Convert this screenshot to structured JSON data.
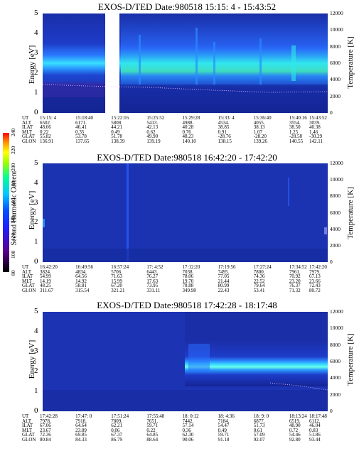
{
  "chart_data": [
    {
      "type": "heatmap",
      "title": "EXOS-D/TED   Date:980518   15:15: 4 - 15:43:52",
      "ylabel": "Energy [eV]",
      "y2label": "Temperature [K]",
      "ylim": [
        0,
        5
      ],
      "y2lim": [
        0,
        12000
      ],
      "yticks": [
        "5",
        "4",
        "3",
        "2",
        "1",
        "0"
      ],
      "y2ticks": [
        "12000",
        "10000",
        "8000",
        "6000",
        "4000",
        "2000",
        "0"
      ],
      "row_labels": [
        "UT",
        "ALT",
        "ILAT",
        "MLT",
        "GLAT",
        "GLON"
      ],
      "columns": [
        [
          "15:15: 4",
          "6502.",
          "48.66",
          "0.22",
          "55.82",
          "136.91"
        ],
        [
          "15:18:40",
          "6171.",
          "46.41",
          "0.35",
          "53.78",
          "137.65"
        ],
        [
          "15:22:16",
          "5808.",
          "44.21",
          "0.49",
          "51.78",
          "138.39"
        ],
        [
          "15:25:52",
          "5413.",
          "42.13",
          "0.62",
          "49.90",
          "139.19"
        ],
        [
          "15:29:28",
          "4988.",
          "40.28",
          "0.76",
          "48.23",
          "140.10"
        ],
        [
          "15:33: 4",
          "4534.",
          "38.85",
          "0.91",
          "-28.76",
          "138.15"
        ],
        [
          "15:36:40",
          "4055.",
          "38.13",
          "1.07",
          "-28.20",
          "139.26"
        ],
        [
          "15:40:16",
          "3554.",
          "38.50",
          "1.25",
          "-28.58",
          "140.55"
        ],
        [
          "15:43:52",
          "3039.",
          "40.38",
          "1.46",
          "-30.29",
          "142.11"
        ]
      ]
    },
    {
      "type": "heatmap",
      "title": "EXOS-D/TED   Date:980518   16:42:20 - 17:42:20",
      "ylabel": "Energy [eV]",
      "y2label": "Temperature [K]",
      "ylim": [
        0,
        5
      ],
      "y2lim": [
        0,
        12000
      ],
      "yticks": [
        "5",
        "4",
        "3",
        "2",
        "1",
        "0"
      ],
      "y2ticks": [
        "12000",
        "10000",
        "8000",
        "6000",
        "4000",
        "2000",
        "0"
      ],
      "row_labels": [
        "UT",
        "ALT",
        "ILAT",
        "MLT",
        "GLAT",
        "GLON"
      ],
      "columns": [
        [
          "16:42:20",
          "3824.",
          "54.99",
          "14.19",
          "48.25",
          "311.67"
        ],
        [
          "16:49:56",
          "4834.",
          "64.56",
          "14.92",
          "58.81",
          "315.54"
        ],
        [
          "16:57:24",
          "5706.",
          "71.63",
          "15.99",
          "67.20",
          "321.21"
        ],
        [
          "17: 4:52",
          "6443.",
          "76.27",
          "17.63",
          "73.95",
          "331.11"
        ],
        [
          "17:12:20",
          "7038.",
          "78.06",
          "19.70",
          "78.88",
          "349.98"
        ],
        [
          "17:19:56",
          "7495.",
          "77.05",
          "21.44",
          "80.99",
          "22.43"
        ],
        [
          "17:27:24",
          "7800.",
          "74.36",
          "22.52",
          "79.64",
          "53.41"
        ],
        [
          "17:34:52",
          "7961.",
          "70.92",
          "23.20",
          "76.37",
          "71.32"
        ],
        [
          "17:42:20",
          "7979.",
          "67.13",
          "23.66",
          "72.43",
          "80.72"
        ]
      ]
    },
    {
      "type": "heatmap",
      "title": "EXOS-D/TED   Date:980518   17:42:28 - 18:17:48",
      "ylabel": "Energy [eV]",
      "y2label": "Temperature [K]",
      "ylim": [
        0,
        5
      ],
      "y2lim": [
        0,
        12000
      ],
      "yticks": [
        "5",
        "4",
        "3",
        "2",
        "1",
        "0"
      ],
      "y2ticks": [
        "12000",
        "10000",
        "8000",
        "6000",
        "4000",
        "2000",
        "0"
      ],
      "row_labels": [
        "UT",
        "ALT",
        "ILAT",
        "MLT",
        "GLAT",
        "GLON"
      ],
      "columns": [
        [
          "17:42:28",
          "7978.",
          "67.06",
          "23.67",
          "72.36",
          "80.84"
        ],
        [
          "17:47: 0",
          "7918.",
          "64.64",
          "23.89",
          "69.85",
          "84.33"
        ],
        [
          "17:51:24",
          "7809.",
          "62.21",
          "0.06",
          "67.37",
          "86.79"
        ],
        [
          "17:55:48",
          "7651.",
          "59.71",
          "0.22",
          "64.85",
          "88.64"
        ],
        [
          "18: 0:12",
          "7442.",
          "57.14",
          "0.36",
          "62.30",
          "90.06"
        ],
        [
          "18: 4:36",
          "7184.",
          "54.47",
          "0.49",
          "59.71",
          "91.18"
        ],
        [
          "18: 9: 0",
          "6877.",
          "51.73",
          "0.61",
          "57.09",
          "92.07"
        ],
        [
          "18:13:24",
          "6519.",
          "48.90",
          "0.72",
          "54.46",
          "92.80"
        ],
        [
          "18:17:48",
          "6112.",
          "46.04",
          "0.83",
          "51.86",
          "93.44"
        ]
      ]
    }
  ],
  "colorbar": {
    "label": "Second Harmonic Current",
    "ticks": [
      "240",
      "220",
      "200",
      "180",
      "160",
      "140",
      "120",
      "100",
      "80"
    ],
    "colors": [
      "#000000",
      "#5a008c",
      "#1e1eff",
      "#0050ff",
      "#00c8ff",
      "#00ff96",
      "#96ff00",
      "#ffff00",
      "#ff9600",
      "#ff0000"
    ]
  }
}
